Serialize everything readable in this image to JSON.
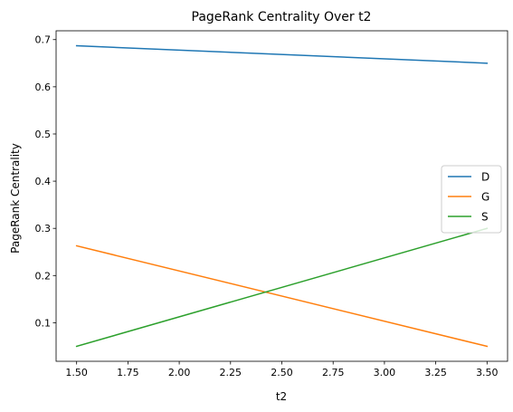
{
  "chart_data": {
    "type": "line",
    "title": "PageRank Centrality Over t2",
    "xlabel": "t2",
    "ylabel": "PageRank Centrality",
    "xlim": [
      1.4,
      3.6
    ],
    "ylim": [
      0.0183,
      0.7187
    ],
    "xticks": [
      1.5,
      1.75,
      2.0,
      2.25,
      2.5,
      2.75,
      3.0,
      3.25,
      3.5
    ],
    "xtick_labels": [
      "1.50",
      "1.75",
      "2.00",
      "2.25",
      "2.50",
      "2.75",
      "3.00",
      "3.25",
      "3.50"
    ],
    "yticks": [
      0.1,
      0.2,
      0.3,
      0.4,
      0.5,
      0.6,
      0.7
    ],
    "ytick_labels": [
      "0.1",
      "0.2",
      "0.3",
      "0.4",
      "0.5",
      "0.6",
      "0.7"
    ],
    "grid": false,
    "legend_position": "center-right",
    "series": [
      {
        "name": "D",
        "color": "#1f77b4",
        "x": [
          1.5,
          3.5
        ],
        "y": [
          0.687,
          0.65
        ]
      },
      {
        "name": "G",
        "color": "#ff7f0e",
        "x": [
          1.5,
          3.5
        ],
        "y": [
          0.263,
          0.05
        ]
      },
      {
        "name": "S",
        "color": "#2ca02c",
        "x": [
          1.5,
          3.5
        ],
        "y": [
          0.05,
          0.3
        ]
      }
    ]
  }
}
